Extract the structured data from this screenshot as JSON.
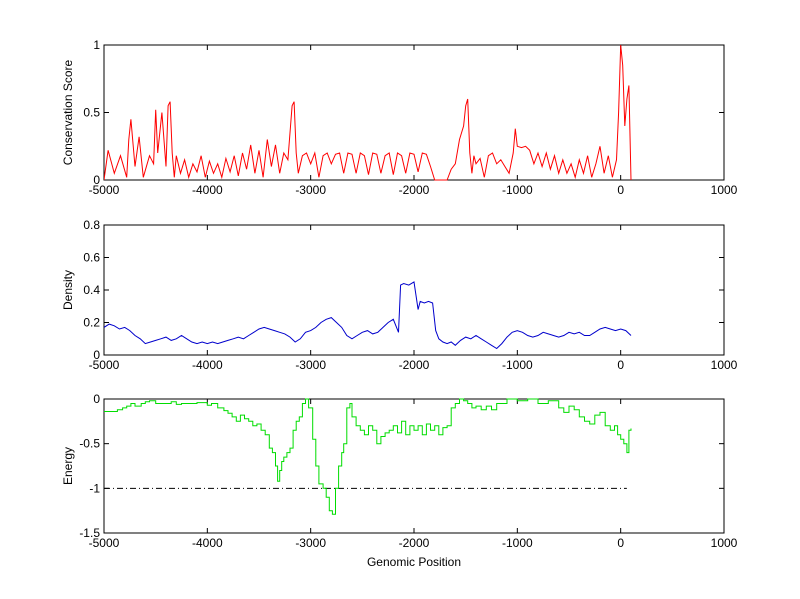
{
  "chart_data": [
    {
      "type": "line",
      "title": "",
      "xlabel": "",
      "ylabel": "Conservation Score",
      "xlim": [
        -5000,
        1000
      ],
      "ylim": [
        0,
        1
      ],
      "xticks": [
        -5000,
        -4000,
        -3000,
        -2000,
        -1000,
        0,
        1000
      ],
      "yticks": [
        0,
        0.5,
        1
      ],
      "xtick_labels": [
        "-5000",
        "-4000",
        "-3000",
        "-2000",
        "-1000",
        "0",
        "1000"
      ],
      "ytick_labels": [
        "0",
        "0.5",
        "1"
      ],
      "grid": false,
      "series": [
        {
          "color": "#ff0000",
          "x": [
            -5000,
            -4960,
            -4900,
            -4840,
            -4780,
            -4760,
            -4740,
            -4700,
            -4660,
            -4620,
            -4560,
            -4520,
            -4500,
            -4480,
            -4440,
            -4400,
            -4380,
            -4360,
            -4340,
            -4320,
            -4300,
            -4260,
            -4220,
            -4180,
            -4140,
            -4100,
            -4060,
            -4020,
            -3980,
            -3940,
            -3900,
            -3860,
            -3820,
            -3780,
            -3740,
            -3700,
            -3660,
            -3620,
            -3580,
            -3540,
            -3500,
            -3460,
            -3420,
            -3380,
            -3340,
            -3300,
            -3260,
            -3220,
            -3180,
            -3160,
            -3140,
            -3120,
            -3080,
            -3040,
            -3000,
            -2960,
            -2920,
            -2880,
            -2840,
            -2800,
            -2760,
            -2720,
            -2680,
            -2640,
            -2600,
            -2560,
            -2520,
            -2480,
            -2440,
            -2400,
            -2360,
            -2320,
            -2280,
            -2240,
            -2200,
            -2160,
            -2120,
            -2080,
            -2040,
            -2000,
            -1960,
            -1920,
            -1880,
            -1840,
            -1800,
            -1760,
            -1720,
            -1680,
            -1640,
            -1600,
            -1560,
            -1520,
            -1500,
            -1480,
            -1460,
            -1440,
            -1420,
            -1400,
            -1360,
            -1320,
            -1280,
            -1240,
            -1200,
            -1160,
            -1120,
            -1080,
            -1040,
            -1020,
            -1000,
            -960,
            -920,
            -880,
            -840,
            -800,
            -760,
            -720,
            -680,
            -640,
            -600,
            -560,
            -520,
            -480,
            -440,
            -400,
            -360,
            -320,
            -280,
            -240,
            -200,
            -160,
            -120,
            -80,
            -40,
            -20,
            0,
            20,
            40,
            60,
            80,
            100
          ],
          "y": [
            0.0,
            0.22,
            0.05,
            0.18,
            0.02,
            0.3,
            0.45,
            0.1,
            0.32,
            0.02,
            0.18,
            0.12,
            0.52,
            0.2,
            0.5,
            0.1,
            0.55,
            0.58,
            0.2,
            0.02,
            0.18,
            0.05,
            0.15,
            0.02,
            0.12,
            0.06,
            0.18,
            0.02,
            0.14,
            0.05,
            0.12,
            0.02,
            0.16,
            0.06,
            0.18,
            0.03,
            0.2,
            0.08,
            0.26,
            0.05,
            0.22,
            0.02,
            0.3,
            0.1,
            0.26,
            0.05,
            0.2,
            0.15,
            0.55,
            0.58,
            0.2,
            0.05,
            0.18,
            0.2,
            0.12,
            0.2,
            0.02,
            0.18,
            0.2,
            0.12,
            0.19,
            0.2,
            0.05,
            0.2,
            0.19,
            0.05,
            0.2,
            0.18,
            0.04,
            0.2,
            0.19,
            0.05,
            0.18,
            0.2,
            0.04,
            0.2,
            0.18,
            0.05,
            0.2,
            0.19,
            0.06,
            0.2,
            0.19,
            0.1,
            0.0,
            0.0,
            0.0,
            0.0,
            0.08,
            0.12,
            0.3,
            0.4,
            0.55,
            0.6,
            0.2,
            0.05,
            0.18,
            0.12,
            0.16,
            0.02,
            0.18,
            0.2,
            0.12,
            0.15,
            0.1,
            0.05,
            0.2,
            0.38,
            0.25,
            0.24,
            0.25,
            0.22,
            0.12,
            0.2,
            0.1,
            0.2,
            0.08,
            0.18,
            0.05,
            0.15,
            0.05,
            0.12,
            0.02,
            0.15,
            0.05,
            0.18,
            0.02,
            0.12,
            0.25,
            0.05,
            0.18,
            0.02,
            0.15,
            0.5,
            1.0,
            0.85,
            0.4,
            0.6,
            0.7,
            0.0
          ]
        }
      ]
    },
    {
      "type": "line",
      "title": "",
      "xlabel": "",
      "ylabel": "Density",
      "xlim": [
        -5000,
        1000
      ],
      "ylim": [
        0,
        0.8
      ],
      "xticks": [
        -5000,
        -4000,
        -3000,
        -2000,
        -1000,
        0,
        1000
      ],
      "yticks": [
        0,
        0.2,
        0.4,
        0.6,
        0.8
      ],
      "xtick_labels": [
        "-5000",
        "-4000",
        "-3000",
        "-2000",
        "-1000",
        "0",
        "1000"
      ],
      "ytick_labels": [
        "0",
        "0.2",
        "0.4",
        "0.6",
        "0.8"
      ],
      "grid": false,
      "series": [
        {
          "color": "#0000cc",
          "x": [
            -5000,
            -4950,
            -4900,
            -4850,
            -4800,
            -4750,
            -4700,
            -4650,
            -4600,
            -4550,
            -4500,
            -4450,
            -4400,
            -4350,
            -4300,
            -4250,
            -4200,
            -4150,
            -4100,
            -4050,
            -4000,
            -3950,
            -3900,
            -3850,
            -3800,
            -3750,
            -3700,
            -3650,
            -3600,
            -3550,
            -3500,
            -3450,
            -3400,
            -3350,
            -3300,
            -3250,
            -3200,
            -3150,
            -3100,
            -3050,
            -3000,
            -2950,
            -2900,
            -2850,
            -2800,
            -2750,
            -2700,
            -2650,
            -2600,
            -2550,
            -2500,
            -2450,
            -2400,
            -2350,
            -2300,
            -2250,
            -2200,
            -2150,
            -2130,
            -2100,
            -2050,
            -2000,
            -1960,
            -1940,
            -1900,
            -1860,
            -1820,
            -1790,
            -1760,
            -1720,
            -1680,
            -1640,
            -1600,
            -1550,
            -1500,
            -1450,
            -1400,
            -1350,
            -1300,
            -1250,
            -1200,
            -1150,
            -1100,
            -1050,
            -1000,
            -950,
            -900,
            -850,
            -800,
            -750,
            -700,
            -650,
            -600,
            -550,
            -500,
            -450,
            -400,
            -350,
            -300,
            -250,
            -200,
            -150,
            -100,
            -50,
            0,
            50,
            100
          ],
          "y": [
            0.17,
            0.19,
            0.18,
            0.16,
            0.17,
            0.15,
            0.12,
            0.1,
            0.07,
            0.08,
            0.09,
            0.1,
            0.11,
            0.09,
            0.1,
            0.12,
            0.1,
            0.08,
            0.07,
            0.08,
            0.07,
            0.08,
            0.07,
            0.08,
            0.09,
            0.1,
            0.11,
            0.1,
            0.12,
            0.14,
            0.16,
            0.17,
            0.16,
            0.15,
            0.14,
            0.13,
            0.11,
            0.08,
            0.1,
            0.14,
            0.15,
            0.17,
            0.2,
            0.22,
            0.23,
            0.2,
            0.17,
            0.12,
            0.1,
            0.12,
            0.14,
            0.15,
            0.13,
            0.14,
            0.17,
            0.2,
            0.22,
            0.14,
            0.43,
            0.44,
            0.43,
            0.45,
            0.28,
            0.33,
            0.32,
            0.33,
            0.32,
            0.15,
            0.1,
            0.08,
            0.07,
            0.08,
            0.06,
            0.09,
            0.11,
            0.1,
            0.12,
            0.1,
            0.08,
            0.06,
            0.04,
            0.07,
            0.11,
            0.14,
            0.15,
            0.14,
            0.12,
            0.11,
            0.12,
            0.14,
            0.13,
            0.12,
            0.11,
            0.12,
            0.14,
            0.13,
            0.14,
            0.12,
            0.12,
            0.14,
            0.16,
            0.17,
            0.16,
            0.15,
            0.16,
            0.15,
            0.12
          ]
        }
      ]
    },
    {
      "type": "line",
      "title": "",
      "xlabel": "Genomic Position",
      "ylabel": "Energy",
      "xlim": [
        -5000,
        1000
      ],
      "ylim": [
        -1.5,
        0
      ],
      "xticks": [
        -5000,
        -4000,
        -3000,
        -2000,
        -1000,
        0,
        1000
      ],
      "yticks": [
        -1.5,
        -1,
        -0.5,
        0
      ],
      "xtick_labels": [
        "-5000",
        "-4000",
        "-3000",
        "-2000",
        "-1000",
        "0",
        "1000"
      ],
      "ytick_labels": [
        "-1.5",
        "-1",
        "-0.5",
        "0"
      ],
      "grid": false,
      "reference_line": {
        "y": -1.0,
        "x": [
          -5000,
          60
        ],
        "color": "#000000",
        "style": "dash-dot"
      },
      "series": [
        {
          "color": "#00dd00",
          "step": true,
          "x": [
            -5000,
            -4870,
            -4820,
            -4780,
            -4740,
            -4700,
            -4640,
            -4600,
            -4560,
            -4500,
            -4400,
            -4350,
            -4300,
            -4250,
            -4100,
            -4000,
            -3960,
            -3900,
            -3840,
            -3800,
            -3760,
            -3720,
            -3680,
            -3640,
            -3600,
            -3560,
            -3520,
            -3480,
            -3440,
            -3400,
            -3370,
            -3340,
            -3320,
            -3300,
            -3280,
            -3260,
            -3230,
            -3200,
            -3170,
            -3140,
            -3110,
            -3080,
            -3050,
            -3020,
            -2980,
            -2950,
            -2920,
            -2880,
            -2850,
            -2820,
            -2790,
            -2760,
            -2730,
            -2700,
            -2680,
            -2650,
            -2620,
            -2600,
            -2560,
            -2520,
            -2480,
            -2440,
            -2400,
            -2360,
            -2320,
            -2280,
            -2240,
            -2200,
            -2160,
            -2120,
            -2080,
            -2040,
            -2000,
            -1960,
            -1920,
            -1880,
            -1840,
            -1800,
            -1760,
            -1720,
            -1680,
            -1640,
            -1600,
            -1560,
            -1520,
            -1480,
            -1440,
            -1400,
            -1350,
            -1300,
            -1250,
            -1200,
            -1100,
            -1000,
            -900,
            -800,
            -700,
            -600,
            -550,
            -500,
            -450,
            -400,
            -350,
            -300,
            -250,
            -200,
            -150,
            -100,
            -60,
            -30,
            0,
            30,
            60,
            80,
            100
          ],
          "y": [
            -0.14,
            -0.12,
            -0.1,
            -0.08,
            -0.05,
            -0.08,
            -0.05,
            -0.03,
            -0.02,
            -0.05,
            -0.05,
            -0.03,
            -0.06,
            -0.05,
            -0.04,
            -0.07,
            -0.05,
            -0.1,
            -0.13,
            -0.16,
            -0.2,
            -0.25,
            -0.18,
            -0.22,
            -0.25,
            -0.3,
            -0.28,
            -0.35,
            -0.4,
            -0.55,
            -0.6,
            -0.75,
            -0.92,
            -0.8,
            -0.7,
            -0.65,
            -0.6,
            -0.55,
            -0.35,
            -0.25,
            -0.2,
            -0.05,
            0.0,
            -0.1,
            -0.45,
            -0.75,
            -0.95,
            -1.0,
            -1.1,
            -1.25,
            -1.29,
            -1.0,
            -0.75,
            -0.6,
            -0.5,
            -0.1,
            -0.05,
            -0.2,
            -0.3,
            -0.35,
            -0.4,
            -0.3,
            -0.35,
            -0.5,
            -0.42,
            -0.38,
            -0.35,
            -0.3,
            -0.38,
            -0.25,
            -0.4,
            -0.3,
            -0.35,
            -0.3,
            -0.4,
            -0.28,
            -0.35,
            -0.3,
            -0.4,
            -0.32,
            -0.3,
            -0.1,
            -0.05,
            0.0,
            -0.02,
            -0.05,
            -0.1,
            -0.08,
            -0.12,
            -0.08,
            -0.12,
            -0.05,
            0.0,
            -0.02,
            0.0,
            -0.05,
            -0.02,
            -0.1,
            -0.15,
            -0.08,
            -0.12,
            -0.2,
            -0.25,
            -0.28,
            -0.18,
            -0.15,
            -0.3,
            -0.35,
            -0.3,
            -0.4,
            -0.45,
            -0.5,
            -0.6,
            -0.35,
            -0.33
          ]
        }
      ]
    }
  ]
}
